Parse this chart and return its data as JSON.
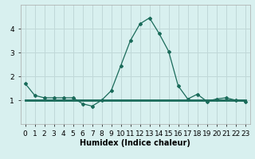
{
  "xlabel": "Humidex (Indice chaleur)",
  "x_values": [
    0,
    1,
    2,
    3,
    4,
    5,
    6,
    7,
    8,
    9,
    10,
    11,
    12,
    13,
    14,
    15,
    16,
    17,
    18,
    19,
    20,
    21,
    22,
    23
  ],
  "y_line1": [
    1.7,
    1.2,
    1.1,
    1.1,
    1.1,
    1.1,
    0.85,
    0.75,
    1.0,
    1.4,
    2.45,
    3.5,
    4.2,
    4.45,
    3.8,
    3.05,
    1.6,
    1.05,
    1.25,
    0.95,
    1.05,
    1.1,
    1.0,
    0.95
  ],
  "y_line2": [
    1.0,
    1.0,
    1.0,
    1.0,
    1.0,
    1.0,
    1.0,
    1.0,
    1.0,
    1.0,
    1.0,
    1.0,
    1.0,
    1.0,
    1.0,
    1.0,
    1.0,
    1.0,
    1.0,
    1.0,
    1.0,
    1.0,
    1.0,
    1.0
  ],
  "line_color": "#1a6b5a",
  "bg_color": "#d8f0ef",
  "grid_color": "#c0d8d8",
  "ylim": [
    0,
    5
  ],
  "yticks": [
    1,
    2,
    3,
    4
  ],
  "xticks": [
    0,
    1,
    2,
    3,
    4,
    5,
    6,
    7,
    8,
    9,
    10,
    11,
    12,
    13,
    14,
    15,
    16,
    17,
    18,
    19,
    20,
    21,
    22,
    23
  ],
  "xlabel_fontsize": 7,
  "tick_fontsize": 6.5
}
